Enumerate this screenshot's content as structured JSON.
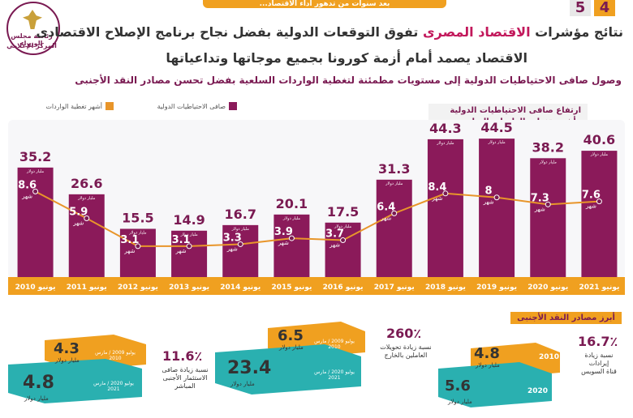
{
  "top_banner": "...بعد سنوات من تدهور أداء الاقتصاد",
  "page_numbers": [
    "5",
    "4"
  ],
  "logo": {
    "line1": "رئاسة مجلس الوزراء",
    "line2": "المركز الإعلامي"
  },
  "headline": {
    "part1": "نتائج مؤشرات ",
    "highlight": "الاقتصاد المصرى",
    "part2": " تفوق التوقعات الدولية بفضل نجاح برنامج الإصلاح الاقتصادى",
    "line2": "الاقتصاد يصمد أمام أزمة كورونا بجميع موجاتها وتداعياتها"
  },
  "subtitle": "وصول صافى الاحتياطيات الدولية إلى مستويات مطمئنة لتغطية الواردات السلعية بفضل تحسن مصادر النقد الأجنبى",
  "legend": {
    "reserves": "صافى الاحتياطيات الدولية",
    "months": "أشهر تغطية الواردات"
  },
  "chart_title": {
    "line1": "ارتفاع صافى الاحتياطيات الدولية",
    "line2": "وأشهر تغطية الواردات السلعية"
  },
  "colors": {
    "bar": "#8b1a5a",
    "line": "#e8952a",
    "axis_band": "#f0a020",
    "teal": "#2ab0b0"
  },
  "units": {
    "bar": "مليار دولار",
    "line": "شهر"
  },
  "chart_data": {
    "type": "bar",
    "categories": [
      "يونيو 2010",
      "يونيو 2011",
      "يونيو 2012",
      "يونيو 2013",
      "يونيو 2014",
      "يونيو 2015",
      "يونيو 2016",
      "يونيو 2017",
      "يونيو 2018",
      "يونيو 2019",
      "يونيو 2020",
      "يونيو 2021"
    ],
    "series": [
      {
        "name": "صافى الاحتياطيات الدولية",
        "values": [
          35.2,
          26.6,
          15.5,
          14.9,
          16.7,
          20.1,
          17.5,
          31.3,
          44.3,
          44.5,
          38.2,
          40.6
        ]
      },
      {
        "name": "أشهر تغطية الواردات",
        "values": [
          8.6,
          5.9,
          3.1,
          3.1,
          3.3,
          3.9,
          3.7,
          6.4,
          8.4,
          8,
          7.3,
          7.6
        ]
      }
    ]
  },
  "sources": {
    "title": "أبرز مصادر النقد الأجنبى",
    "suez": {
      "pct": "16.7٪",
      "desc1": "نسبة زيادة",
      "desc2": "إيرادات",
      "desc3": "قناة السويس",
      "v_old": "4.8",
      "v_new": "5.6",
      "y_old": "2010",
      "y_new": "2020",
      "unit": "مليار دولار"
    },
    "remit": {
      "pct": "260٪",
      "desc1": "نسبة زيادة تحويلات",
      "desc2": "العاملين بالخارج",
      "v_old": "6.5",
      "v_new": "23.4",
      "y_old": "يوليو 2009 / مارس 2010",
      "y_new": "يوليو 2020 / مارس 2021",
      "unit": "مليار دولار"
    },
    "fdi": {
      "pct": "11.6٪",
      "desc1": "نسبة زيادة صافى",
      "desc2": "الاستثمار الأجنبى",
      "desc3": "المباشر",
      "v_old": "4.3",
      "v_new": "4.8",
      "y_old": "يوليو 2009 / مارس 2010",
      "y_new": "يوليو 2020 / مارس 2021",
      "unit": "مليار دولار"
    }
  }
}
